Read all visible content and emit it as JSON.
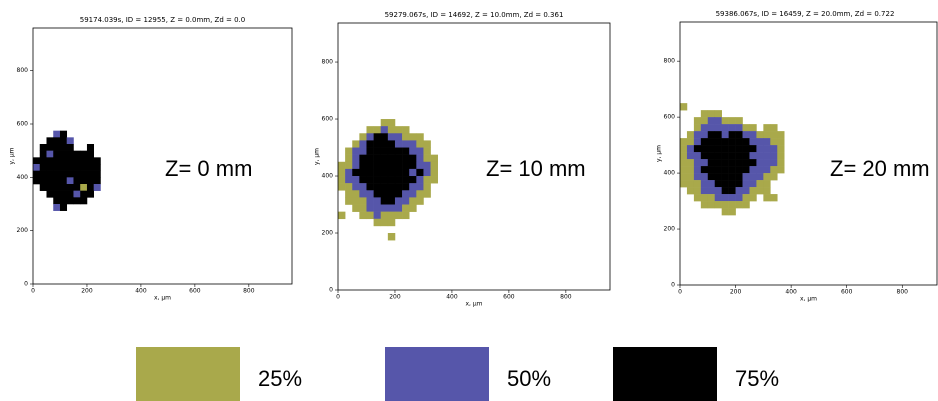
{
  "chart_data": [
    {
      "type": "heatmap",
      "title": "59174.039s, ID = 12955, Z = 0.0mm, Zd = 0.0",
      "xlabel": "x, μm",
      "ylabel": "y, μm",
      "annotation": "Z= 0 mm",
      "xlim": [
        0,
        960
      ],
      "ylim": [
        0,
        960
      ],
      "xticks": [
        0,
        200,
        400,
        600,
        800
      ],
      "yticks": [
        0,
        200,
        400,
        600,
        800
      ],
      "grid": {
        "x0": 0,
        "y_top": 575,
        "cell": 25,
        "rows": [
          [
            0,
            0,
            0,
            2,
            3,
            0,
            0,
            0,
            0,
            0,
            0
          ],
          [
            0,
            0,
            3,
            3,
            3,
            2,
            0,
            0,
            0,
            0,
            0
          ],
          [
            0,
            3,
            3,
            3,
            3,
            3,
            0,
            0,
            3,
            0,
            0
          ],
          [
            0,
            3,
            2,
            3,
            3,
            3,
            3,
            3,
            3,
            0,
            0
          ],
          [
            3,
            3,
            3,
            3,
            3,
            3,
            3,
            3,
            3,
            3,
            0
          ],
          [
            2,
            3,
            3,
            3,
            3,
            3,
            3,
            3,
            3,
            3,
            0
          ],
          [
            3,
            3,
            3,
            3,
            3,
            3,
            3,
            3,
            3,
            3,
            0
          ],
          [
            3,
            3,
            3,
            3,
            3,
            2,
            3,
            3,
            3,
            3,
            0
          ],
          [
            0,
            3,
            3,
            3,
            3,
            3,
            3,
            1,
            3,
            2,
            0
          ],
          [
            0,
            0,
            3,
            3,
            3,
            3,
            2,
            3,
            3,
            0,
            0
          ],
          [
            0,
            0,
            0,
            3,
            3,
            3,
            3,
            3,
            0,
            0,
            0
          ],
          [
            0,
            0,
            0,
            2,
            3,
            0,
            0,
            0,
            0,
            0,
            0
          ]
        ]
      }
    },
    {
      "type": "heatmap",
      "title": "59279.067s, ID = 14692, Z = 10.0mm, Zd = 0.361",
      "xlabel": "x, μm",
      "ylabel": "y, μm",
      "annotation": "Z= 10 mm",
      "xlim": [
        0,
        955
      ],
      "ylim": [
        0,
        937
      ],
      "xticks": [
        0,
        200,
        400,
        600,
        800
      ],
      "yticks": [
        0,
        200,
        400,
        600,
        800
      ],
      "grid": {
        "x0": 0,
        "y_top": 600,
        "cell": 25,
        "rows": [
          [
            0,
            0,
            0,
            0,
            0,
            0,
            1,
            1,
            0,
            0,
            0,
            0,
            0,
            0
          ],
          [
            0,
            0,
            0,
            0,
            1,
            1,
            2,
            1,
            1,
            1,
            0,
            0,
            0,
            0
          ],
          [
            0,
            0,
            0,
            1,
            2,
            3,
            3,
            2,
            2,
            1,
            1,
            1,
            0,
            0
          ],
          [
            0,
            0,
            1,
            2,
            3,
            3,
            3,
            3,
            2,
            2,
            2,
            1,
            1,
            0
          ],
          [
            0,
            1,
            2,
            2,
            3,
            3,
            3,
            3,
            3,
            3,
            2,
            2,
            1,
            0
          ],
          [
            0,
            1,
            2,
            3,
            3,
            3,
            3,
            3,
            3,
            3,
            3,
            2,
            1,
            1
          ],
          [
            1,
            1,
            2,
            3,
            3,
            3,
            3,
            3,
            3,
            3,
            3,
            2,
            2,
            1
          ],
          [
            1,
            2,
            3,
            3,
            3,
            3,
            3,
            3,
            3,
            3,
            2,
            3,
            2,
            1
          ],
          [
            1,
            2,
            2,
            3,
            3,
            3,
            3,
            3,
            3,
            3,
            3,
            2,
            1,
            1
          ],
          [
            1,
            1,
            2,
            2,
            3,
            3,
            3,
            3,
            3,
            3,
            2,
            2,
            1,
            0
          ],
          [
            0,
            1,
            1,
            2,
            2,
            3,
            3,
            3,
            3,
            2,
            2,
            1,
            1,
            0
          ],
          [
            0,
            1,
            1,
            1,
            2,
            2,
            3,
            3,
            2,
            2,
            1,
            1,
            0,
            0
          ],
          [
            0,
            0,
            1,
            1,
            2,
            2,
            2,
            2,
            2,
            1,
            1,
            0,
            0,
            0
          ],
          [
            1,
            0,
            0,
            1,
            1,
            2,
            1,
            1,
            1,
            1,
            0,
            0,
            0,
            0
          ],
          [
            0,
            0,
            0,
            0,
            0,
            1,
            1,
            1,
            0,
            0,
            0,
            0,
            0,
            0
          ],
          [
            0,
            0,
            0,
            0,
            0,
            0,
            0,
            0,
            0,
            0,
            0,
            0,
            0,
            0
          ],
          [
            0,
            0,
            0,
            0,
            0,
            0,
            0,
            1,
            0,
            0,
            0,
            0,
            0,
            0
          ]
        ]
      }
    },
    {
      "type": "heatmap",
      "title": "59386.067s, ID = 16459, Z = 20.0mm, Zd = 0.722",
      "xlabel": "x, μm",
      "ylabel": "y, μm",
      "annotation": "Z= 20 mm",
      "xlim": [
        0,
        925
      ],
      "ylim": [
        0,
        940
      ],
      "xticks": [
        0,
        200,
        400,
        600,
        800
      ],
      "yticks": [
        0,
        200,
        400,
        600,
        800
      ],
      "grid": {
        "x0": 0,
        "y_top": 650,
        "cell": 25,
        "rows": [
          [
            1,
            0,
            0,
            0,
            0,
            0,
            0,
            0,
            0,
            0,
            0,
            0,
            0,
            0,
            0
          ],
          [
            0,
            0,
            0,
            1,
            1,
            1,
            0,
            0,
            0,
            0,
            0,
            0,
            0,
            0,
            0
          ],
          [
            0,
            0,
            1,
            1,
            2,
            2,
            1,
            1,
            1,
            0,
            0,
            0,
            0,
            0,
            0
          ],
          [
            0,
            0,
            1,
            2,
            2,
            2,
            2,
            2,
            2,
            1,
            1,
            0,
            1,
            1,
            0
          ],
          [
            0,
            1,
            2,
            2,
            3,
            3,
            2,
            3,
            3,
            2,
            2,
            1,
            1,
            1,
            1
          ],
          [
            1,
            1,
            2,
            3,
            3,
            3,
            3,
            3,
            3,
            3,
            2,
            2,
            2,
            1,
            1
          ],
          [
            1,
            2,
            3,
            3,
            3,
            3,
            3,
            3,
            3,
            3,
            3,
            2,
            2,
            2,
            1
          ],
          [
            1,
            2,
            2,
            3,
            3,
            3,
            3,
            3,
            3,
            3,
            2,
            2,
            2,
            2,
            1
          ],
          [
            1,
            1,
            2,
            2,
            3,
            3,
            3,
            3,
            3,
            3,
            3,
            2,
            2,
            2,
            1
          ],
          [
            1,
            1,
            2,
            3,
            3,
            3,
            3,
            3,
            3,
            3,
            2,
            2,
            2,
            1,
            1
          ],
          [
            1,
            1,
            2,
            2,
            3,
            3,
            3,
            3,
            3,
            2,
            2,
            2,
            1,
            1,
            0
          ],
          [
            1,
            1,
            1,
            2,
            2,
            3,
            3,
            3,
            3,
            2,
            2,
            1,
            1,
            0,
            0
          ],
          [
            0,
            1,
            1,
            2,
            2,
            2,
            3,
            3,
            2,
            2,
            1,
            1,
            1,
            0,
            0
          ],
          [
            0,
            0,
            1,
            1,
            1,
            2,
            2,
            2,
            2,
            1,
            1,
            0,
            1,
            1,
            0
          ],
          [
            0,
            0,
            0,
            1,
            1,
            1,
            1,
            1,
            1,
            1,
            0,
            0,
            0,
            0,
            0
          ],
          [
            0,
            0,
            0,
            0,
            0,
            0,
            1,
            1,
            0,
            0,
            0,
            0,
            0,
            0,
            0
          ]
        ]
      }
    }
  ],
  "legend": [
    {
      "level": 1,
      "label": "25%",
      "color": "#a9a94b"
    },
    {
      "level": 2,
      "label": "50%",
      "color": "#5656aa"
    },
    {
      "level": 3,
      "label": "75%",
      "color": "#000000"
    }
  ]
}
